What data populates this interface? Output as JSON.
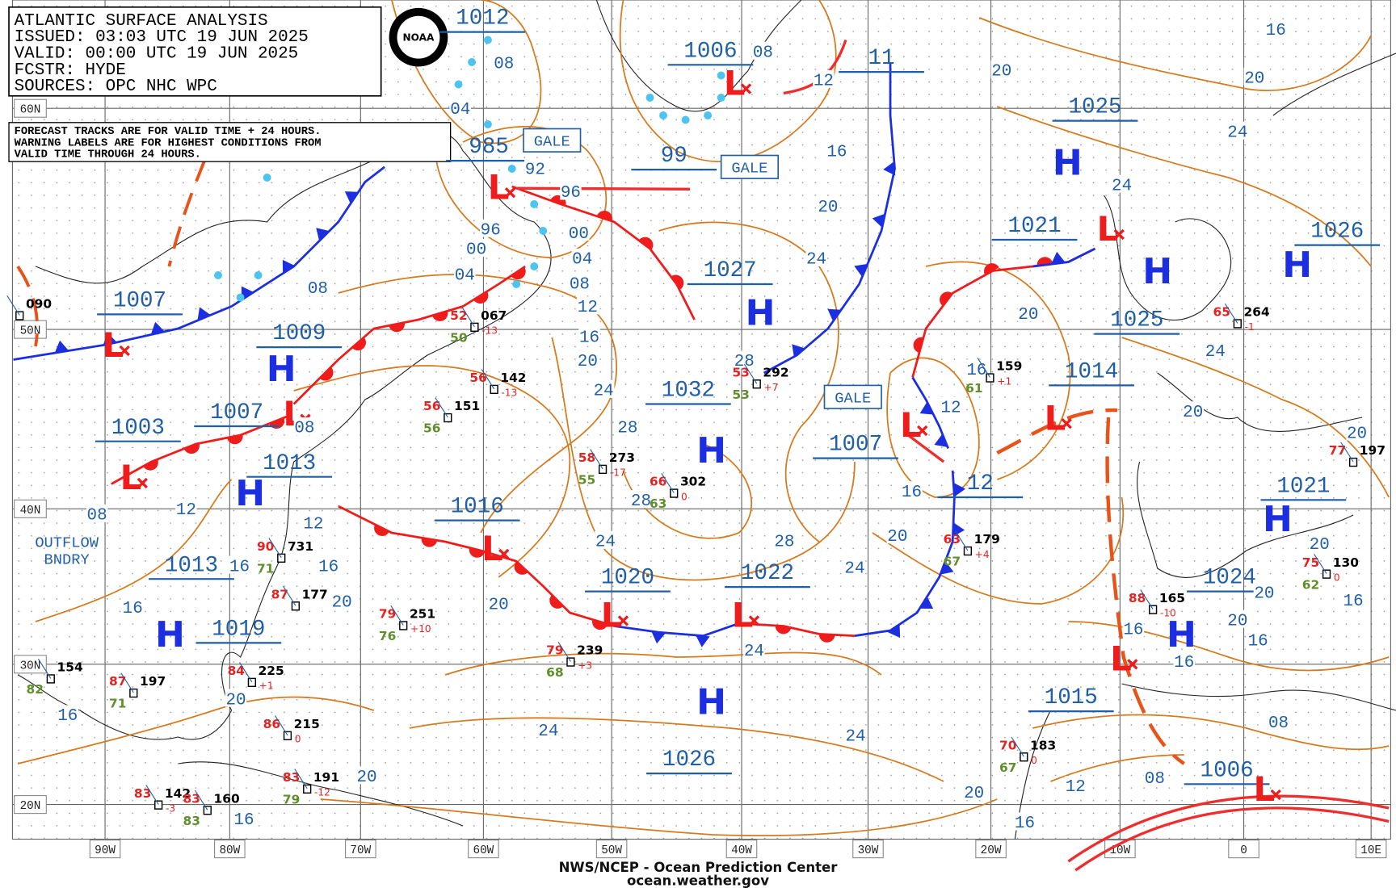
{
  "header": {
    "lines": [
      "ATLANTIC SURFACE ANALYSIS",
      "ISSUED: 03:03 UTC 19 JUN 2025",
      "VALID: 00:00 UTC 19 JUN 2025",
      "FCSTR: HYDE",
      "SOURCES: OPC NHC WPC"
    ],
    "logo": "NOAA"
  },
  "note": [
    "FORECAST TRACKS ARE FOR VALID TIME + 24 HOURS.",
    "WARNING LABELS ARE FOR HIGHEST CONDITIONS FROM",
    "VALID TIME THROUGH 24 HOURS."
  ],
  "footer": [
    "NWS/NCEP - Ocean Prediction Center",
    "ocean.weather.gov"
  ],
  "lat_labels": [
    "60N",
    "50N",
    "40N",
    "30N",
    "20N"
  ],
  "lon_labels": [
    "90W",
    "80W",
    "70W",
    "60W",
    "50W",
    "40W",
    "30W",
    "20W",
    "10W",
    "0",
    "10E"
  ],
  "pressure_labels": [
    "1012",
    "1006",
    "11",
    "1025",
    "985",
    "99",
    "1021",
    "1026",
    "1027",
    "1007",
    "1009",
    "1025",
    "1032",
    "1014",
    "1003",
    "1007",
    "1007",
    "1013",
    "1016",
    "12",
    "1021",
    "1013",
    "1020",
    "1022",
    "1024",
    "1019",
    "1015",
    "1026",
    "1006"
  ],
  "centers": [
    "H",
    "H",
    "H",
    "H",
    "H",
    "H",
    "H",
    "H",
    "H",
    "H",
    "H",
    "L",
    "L",
    "L",
    "L",
    "L",
    "L",
    "L",
    "L",
    "L",
    "L",
    "L",
    "L",
    "L"
  ],
  "isobar_labels": [
    "08",
    "04",
    "16",
    "20",
    "20",
    "08",
    "12",
    "24",
    "92",
    "96",
    "24",
    "16",
    "20",
    "96",
    "00",
    "00",
    "04",
    "04",
    "24",
    "08",
    "08",
    "12",
    "20",
    "16",
    "28",
    "20",
    "24",
    "16",
    "24",
    "28",
    "12",
    "20",
    "08",
    "20",
    "16",
    "28",
    "08",
    "12",
    "12",
    "20",
    "24",
    "28",
    "20",
    "16",
    "16",
    "24",
    "20",
    "16",
    "20",
    "20",
    "16",
    "16",
    "20",
    "16",
    "24",
    "16",
    "16",
    "20",
    "24",
    "24",
    "08",
    "20",
    "08",
    "12",
    "20",
    "16",
    "16"
  ],
  "warnings": [
    "GALE",
    "GALE",
    "GALE"
  ],
  "boundary_label": [
    "OUTFLOW",
    "BNDRY"
  ],
  "stations": [
    {
      "p": "067",
      "t": "52",
      "d": "50",
      "tend": "-13"
    },
    {
      "p": "142",
      "t": "56",
      "tend": "-13"
    },
    {
      "p": "151",
      "t": "56",
      "d": "56"
    },
    {
      "p": "292",
      "t": "53",
      "d": "53",
      "tend": "+7"
    },
    {
      "p": "159",
      "d": "61",
      "tend": "+1"
    },
    {
      "p": "179",
      "t": "63",
      "d": "67",
      "tend": "+4"
    },
    {
      "p": "264",
      "t": "65",
      "tend": "-1"
    },
    {
      "p": "197",
      "t": "77"
    },
    {
      "p": "130",
      "t": "75",
      "d": "62",
      "tend": "0"
    },
    {
      "p": "165",
      "t": "88",
      "tend": "-10"
    },
    {
      "p": "183",
      "t": "70",
      "d": "67",
      "tend": "0"
    },
    {
      "p": "273",
      "t": "58",
      "d": "55",
      "tend": "-17"
    },
    {
      "p": "302",
      "t": "66",
      "d": "63",
      "tend": "0"
    },
    {
      "p": "239",
      "t": "79",
      "d": "68",
      "tend": "+3"
    },
    {
      "p": "251",
      "t": "79",
      "d": "76",
      "tend": "+10"
    },
    {
      "p": "731",
      "t": "90",
      "d": "71"
    },
    {
      "p": "177",
      "t": "87"
    },
    {
      "p": "154",
      "d": "82"
    },
    {
      "p": "197",
      "t": "87",
      "d": "71"
    },
    {
      "p": "225",
      "t": "84",
      "tend": "+1"
    },
    {
      "p": "215",
      "t": "86",
      "tend": "0"
    },
    {
      "p": "191",
      "t": "83",
      "d": "79",
      "tend": "-12"
    },
    {
      "p": "142",
      "t": "83",
      "tend": "-3"
    },
    {
      "p": "160",
      "t": "83",
      "d": "83"
    },
    {
      "p": "090"
    }
  ]
}
